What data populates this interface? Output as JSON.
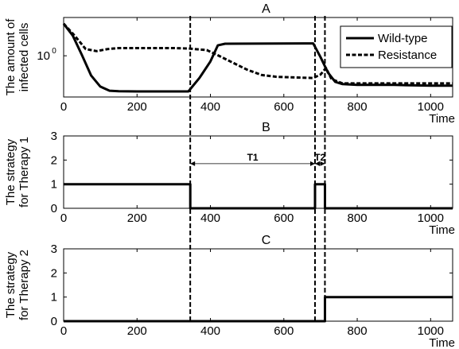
{
  "chart_data": [
    {
      "type": "line",
      "title": "A",
      "xlabel": "Time",
      "ylabel": [
        "The amount of",
        "infected cells"
      ],
      "xlim": [
        0,
        1060
      ],
      "xticks": [
        0,
        200,
        400,
        600,
        800,
        1000
      ],
      "yscale": "log",
      "yticks": [
        1
      ],
      "ytick_labels": [
        "10",
        "0"
      ],
      "legend": {
        "placement": "top-right",
        "entries": [
          "Wild-type",
          "Resistance"
        ]
      },
      "series": [
        {
          "name": "Wild-type",
          "style": "solid",
          "points": [
            [
              0,
              3.5
            ],
            [
              25,
              2.2
            ],
            [
              50,
              1.02
            ],
            [
              75,
              0.46
            ],
            [
              100,
              0.3
            ],
            [
              125,
              0.255
            ],
            [
              150,
              0.25
            ],
            [
              200,
              0.248
            ],
            [
              340,
              0.248
            ],
            [
              370,
              0.42
            ],
            [
              400,
              0.8
            ],
            [
              420,
              1.5
            ],
            [
              440,
              1.6
            ],
            [
              680,
              1.62
            ],
            [
              700,
              0.95
            ],
            [
              720,
              0.52
            ],
            [
              740,
              0.36
            ],
            [
              760,
              0.33
            ],
            [
              800,
              0.32
            ],
            [
              900,
              0.32
            ],
            [
              1000,
              0.31
            ],
            [
              1060,
              0.31
            ]
          ]
        },
        {
          "name": "Resistance",
          "style": "dashed",
          "points": [
            [
              0,
              3.5
            ],
            [
              30,
              2.2
            ],
            [
              60,
              1.3
            ],
            [
              90,
              1.2
            ],
            [
              120,
              1.3
            ],
            [
              150,
              1.35
            ],
            [
              200,
              1.35
            ],
            [
              300,
              1.35
            ],
            [
              340,
              1.33
            ],
            [
              390,
              1.25
            ],
            [
              420,
              1.02
            ],
            [
              460,
              0.77
            ],
            [
              500,
              0.58
            ],
            [
              540,
              0.47
            ],
            [
              580,
              0.44
            ],
            [
              620,
              0.43
            ],
            [
              680,
              0.42
            ],
            [
              700,
              0.48
            ],
            [
              715,
              0.62
            ],
            [
              730,
              0.4
            ],
            [
              760,
              0.34
            ],
            [
              800,
              0.34
            ],
            [
              900,
              0.34
            ],
            [
              1000,
              0.34
            ],
            [
              1060,
              0.34
            ]
          ]
        }
      ]
    },
    {
      "type": "line",
      "title": "B",
      "xlabel": "Time",
      "ylabel": [
        "The strategy",
        "for Therapy 1"
      ],
      "xlim": [
        0,
        1060
      ],
      "ylim": [
        0,
        3
      ],
      "xticks": [
        0,
        200,
        400,
        600,
        800,
        1000
      ],
      "yticks": [
        0,
        1,
        2,
        3
      ],
      "series": [
        {
          "name": "",
          "style": "solid",
          "points": [
            [
              0,
              1
            ],
            [
              345,
              1
            ],
            [
              345,
              0
            ],
            [
              685,
              0
            ],
            [
              685,
              1
            ],
            [
              712,
              1
            ],
            [
              712,
              0
            ],
            [
              1060,
              0
            ]
          ]
        }
      ],
      "annotations": [
        {
          "text": "T1",
          "from": 345,
          "to": 685,
          "y": 1.85
        },
        {
          "text": "T2",
          "from": 685,
          "to": 712,
          "y": 1.85
        }
      ]
    },
    {
      "type": "line",
      "title": "C",
      "xlabel": "Time",
      "ylabel": [
        "The strategy",
        "for Therapy 2"
      ],
      "xlim": [
        0,
        1060
      ],
      "ylim": [
        0,
        3
      ],
      "xticks": [
        0,
        200,
        400,
        600,
        800,
        1000
      ],
      "yticks": [
        0,
        1,
        2,
        3
      ],
      "series": [
        {
          "name": "",
          "style": "solid",
          "points": [
            [
              0,
              0
            ],
            [
              712,
              0
            ],
            [
              712,
              1
            ],
            [
              1060,
              1
            ]
          ]
        }
      ]
    }
  ],
  "switch_times": [
    345,
    685,
    712
  ],
  "colors": {
    "line": "#000000",
    "axis": "#000000",
    "background": "#ffffff"
  }
}
